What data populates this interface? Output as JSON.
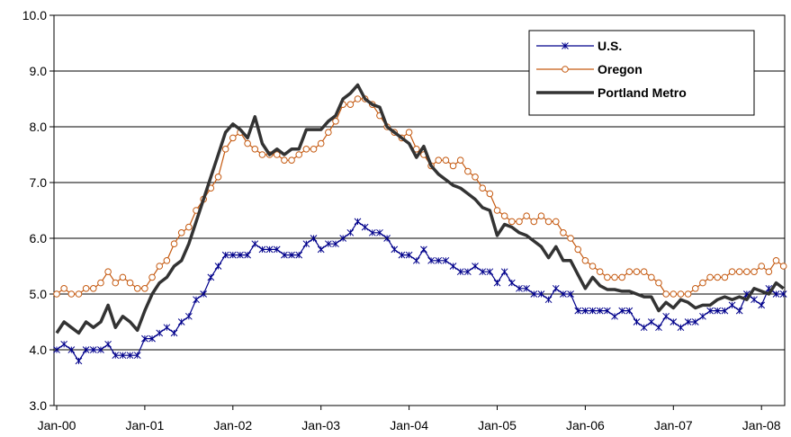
{
  "chart_data": {
    "type": "line",
    "title": "",
    "xlabel": "",
    "ylabel": "",
    "ylim": [
      3.0,
      10.0
    ],
    "yticks": [
      "3.0",
      "4.0",
      "5.0",
      "6.0",
      "7.0",
      "8.0",
      "9.0",
      "10.0"
    ],
    "xticks": [
      "Jan-00",
      "Jan-01",
      "Jan-02",
      "Jan-03",
      "Jan-04",
      "Jan-05",
      "Jan-06",
      "Jan-07",
      "Jan-08"
    ],
    "x_start": "Jan-00",
    "x_end": "Apr-08",
    "grid": "horizontal",
    "legend_position": "top-right",
    "series": [
      {
        "name": "U.S.",
        "color": "#00008B",
        "marker": "star",
        "values": [
          4.0,
          4.1,
          4.0,
          3.8,
          4.0,
          4.0,
          4.0,
          4.1,
          3.9,
          3.9,
          3.9,
          3.9,
          4.2,
          4.2,
          4.3,
          4.4,
          4.3,
          4.5,
          4.6,
          4.9,
          5.0,
          5.3,
          5.5,
          5.7,
          5.7,
          5.7,
          5.7,
          5.9,
          5.8,
          5.8,
          5.8,
          5.7,
          5.7,
          5.7,
          5.9,
          6.0,
          5.8,
          5.9,
          5.9,
          6.0,
          6.1,
          6.3,
          6.2,
          6.1,
          6.1,
          6.0,
          5.8,
          5.7,
          5.7,
          5.6,
          5.8,
          5.6,
          5.6,
          5.6,
          5.5,
          5.4,
          5.4,
          5.5,
          5.4,
          5.4,
          5.2,
          5.4,
          5.2,
          5.1,
          5.1,
          5.0,
          5.0,
          4.9,
          5.1,
          5.0,
          5.0,
          4.7,
          4.7,
          4.7,
          4.7,
          4.7,
          4.6,
          4.7,
          4.7,
          4.5,
          4.4,
          4.5,
          4.4,
          4.6,
          4.5,
          4.4,
          4.5,
          4.5,
          4.6,
          4.7,
          4.7,
          4.7,
          4.8,
          4.7,
          5.0,
          4.9,
          4.8,
          5.1,
          5.0,
          5.0
        ]
      },
      {
        "name": "Oregon",
        "color": "#C55A11",
        "marker": "circle",
        "values": [
          5.0,
          5.1,
          5.0,
          5.0,
          5.1,
          5.1,
          5.2,
          5.4,
          5.2,
          5.3,
          5.2,
          5.1,
          5.1,
          5.3,
          5.5,
          5.6,
          5.9,
          6.1,
          6.2,
          6.5,
          6.7,
          6.9,
          7.1,
          7.6,
          7.8,
          7.9,
          7.7,
          7.6,
          7.5,
          7.5,
          7.5,
          7.4,
          7.4,
          7.5,
          7.6,
          7.6,
          7.7,
          7.9,
          8.1,
          8.4,
          8.4,
          8.5,
          8.5,
          8.4,
          8.2,
          8.0,
          7.9,
          7.8,
          7.9,
          7.6,
          7.5,
          7.3,
          7.4,
          7.4,
          7.3,
          7.4,
          7.2,
          7.1,
          6.9,
          6.8,
          6.5,
          6.4,
          6.3,
          6.3,
          6.4,
          6.3,
          6.4,
          6.3,
          6.3,
          6.1,
          6.0,
          5.8,
          5.6,
          5.5,
          5.4,
          5.3,
          5.3,
          5.3,
          5.4,
          5.4,
          5.4,
          5.3,
          5.2,
          5.0,
          5.0,
          5.0,
          5.0,
          5.1,
          5.2,
          5.3,
          5.3,
          5.3,
          5.4,
          5.4,
          5.4,
          5.4,
          5.5,
          5.4,
          5.6,
          5.5
        ]
      },
      {
        "name": "Portland Metro",
        "color": "#333333",
        "marker": "none",
        "values": [
          4.3,
          4.5,
          4.4,
          4.3,
          4.5,
          4.4,
          4.5,
          4.8,
          4.4,
          4.6,
          4.5,
          4.35,
          4.7,
          5.0,
          5.2,
          5.3,
          5.5,
          5.6,
          5.9,
          6.3,
          6.7,
          7.1,
          7.5,
          7.9,
          8.05,
          7.95,
          7.8,
          8.18,
          7.7,
          7.5,
          7.6,
          7.5,
          7.6,
          7.6,
          7.95,
          7.95,
          7.95,
          8.1,
          8.2,
          8.5,
          8.6,
          8.75,
          8.5,
          8.4,
          8.35,
          8.0,
          7.9,
          7.8,
          7.7,
          7.45,
          7.65,
          7.3,
          7.15,
          7.05,
          6.95,
          6.9,
          6.8,
          6.7,
          6.55,
          6.5,
          6.05,
          6.25,
          6.2,
          6.1,
          6.05,
          5.95,
          5.85,
          5.65,
          5.85,
          5.6,
          5.6,
          5.35,
          5.1,
          5.3,
          5.15,
          5.08,
          5.08,
          5.05,
          5.05,
          5.0,
          4.95,
          4.95,
          4.7,
          4.85,
          4.75,
          4.9,
          4.85,
          4.75,
          4.8,
          4.8,
          4.9,
          4.95,
          4.9,
          4.95,
          4.9,
          5.1,
          5.05,
          5.0,
          5.2,
          5.1
        ]
      }
    ]
  }
}
